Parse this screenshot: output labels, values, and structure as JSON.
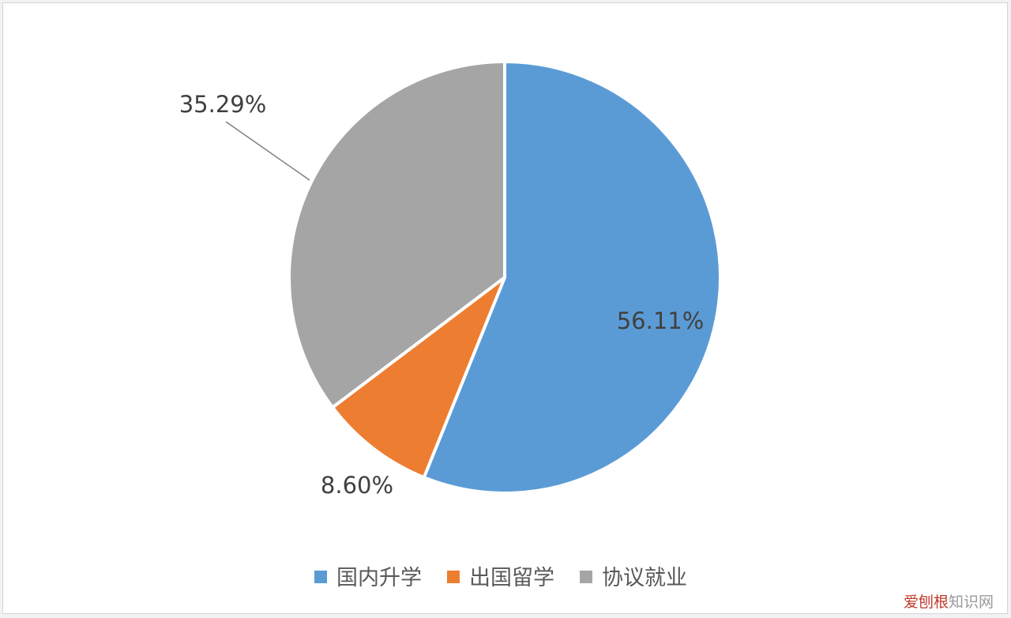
{
  "chart_data": {
    "type": "pie",
    "title": "",
    "categories": [
      "国内升学",
      "出国留学",
      "协议就业"
    ],
    "values": [
      56.11,
      8.6,
      35.29
    ],
    "data_labels": [
      "56.11%",
      "8.60%",
      "35.29%"
    ],
    "colors": [
      "#5b9bd5",
      "#ed7d31",
      "#a5a5a5"
    ],
    "start_angle_deg": 0,
    "direction": "clockwise",
    "legend_position": "bottom",
    "unit": "%"
  },
  "watermark": {
    "brand": "爱刨根",
    "site": "知识网"
  }
}
